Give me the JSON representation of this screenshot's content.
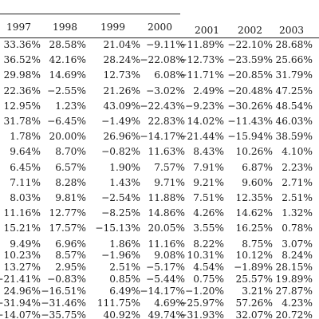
{
  "table": {
    "columns": [
      "1997",
      "1998",
      "1999",
      "2000",
      "2001",
      "2002",
      "2003"
    ],
    "rows": [
      [
        "33.36%",
        "28.58%",
        "21.04%",
        "−9.11%",
        "−11.89%",
        "−22.10%",
        "28.68%"
      ],
      [
        "36.52%",
        "42.16%",
        "28.24%",
        "−22.08%",
        "−12.73%",
        "−23.59%",
        "25.66%"
      ],
      [
        "29.98%",
        "14.69%",
        "12.73%",
        "6.08%",
        "−11.71%",
        "−20.85%",
        "31.79%"
      ],
      [
        "22.36%",
        "−2.55%",
        "21.26%",
        "−3.02%",
        "2.49%",
        "−20.48%",
        "47.25%"
      ],
      [
        "12.95%",
        "1.23%",
        "43.09%",
        "−22.43%",
        "−9.23%",
        "−30.26%",
        "48.54%"
      ],
      [
        "31.78%",
        "−6.45%",
        "−1.49%",
        "22.83%",
        "14.02%",
        "−11.43%",
        "46.03%"
      ],
      [
        "1.78%",
        "20.00%",
        "26.96%",
        "−14.17%",
        "−21.44%",
        "−15.94%",
        "38.59%"
      ],
      [
        "9.64%",
        "8.70%",
        "−0.82%",
        "11.63%",
        "8.43%",
        "10.26%",
        "4.10%"
      ],
      [
        "6.45%",
        "6.57%",
        "1.90%",
        "7.57%",
        "7.91%",
        "6.87%",
        "2.23%"
      ],
      [
        "7.11%",
        "8.28%",
        "1.43%",
        "9.71%",
        "9.21%",
        "9.60%",
        "2.71%"
      ],
      [
        "8.03%",
        "9.81%",
        "−2.54%",
        "11.88%",
        "7.51%",
        "12.35%",
        "2.51%"
      ],
      [
        "11.16%",
        "12.77%",
        "−8.25%",
        "14.86%",
        "4.26%",
        "14.62%",
        "1.32%"
      ],
      [
        "15.21%",
        "17.57%",
        "−15.13%",
        "20.05%",
        "3.55%",
        "16.25%",
        "0.78%"
      ],
      [
        "9.49%",
        "6.96%",
        "1.86%",
        "11.16%",
        "8.22%",
        "8.75%",
        "3.07%"
      ],
      [
        "10.23%",
        "8.57%",
        "−1.96%",
        "9.08%",
        "10.31%",
        "10.12%",
        "8.24%"
      ],
      [
        "13.27%",
        "2.95%",
        "2.51%",
        "−5.17%",
        "4.54%",
        "−1.89%",
        "28.15%"
      ],
      [
        "−21.41%",
        "−0.83%",
        "0.85%",
        "−5.44%",
        "0.75%",
        "25.57%",
        "19.89%"
      ],
      [
        "24.96%",
        "−16.51%",
        "6.49%",
        "−14.17%",
        "−1.20%",
        "3.21%",
        "27.87%"
      ],
      [
        "−31.94%",
        "−31.46%",
        "111.75%",
        "4.69%",
        "−25.97%",
        "57.26%",
        "4.23%"
      ],
      [
        "−14.07%",
        "−35.75%",
        "40.92%",
        "49.74%",
        "−31.93%",
        "32.07%",
        "20.72%"
      ]
    ]
  }
}
